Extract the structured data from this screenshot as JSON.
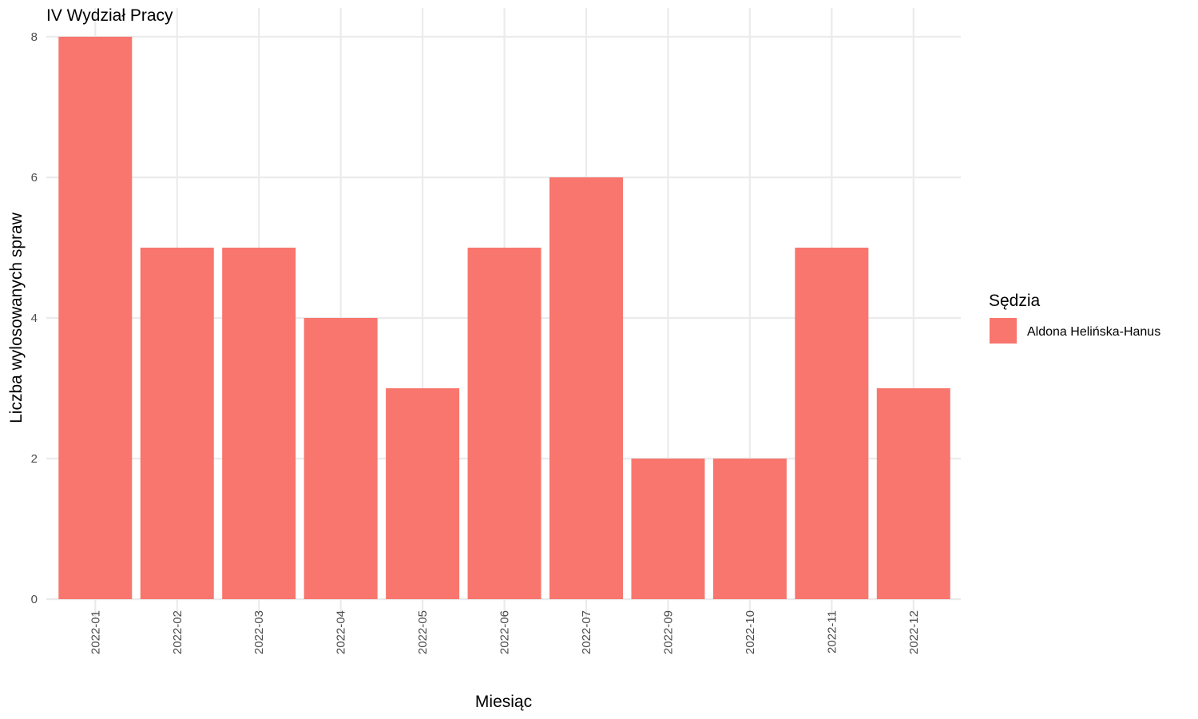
{
  "chart_data": {
    "type": "bar",
    "title": "IV Wydział Pracy",
    "xlabel": "Miesiąc",
    "ylabel": "Liczba wylosowanych spraw",
    "categories": [
      "2022-01",
      "2022-02",
      "2022-03",
      "2022-04",
      "2022-05",
      "2022-06",
      "2022-07",
      "2022-09",
      "2022-10",
      "2022-11",
      "2022-12"
    ],
    "series": [
      {
        "name": "Aldona Helińska-Hanus",
        "values": [
          8,
          5,
          5,
          4,
          3,
          5,
          6,
          2,
          2,
          5,
          3
        ],
        "color": "#f8766d"
      }
    ],
    "ylim": [
      0,
      8
    ],
    "yticks": [
      0,
      2,
      4,
      6,
      8
    ],
    "grid": true,
    "legend": {
      "title": "Sędzia",
      "position": "right"
    }
  }
}
